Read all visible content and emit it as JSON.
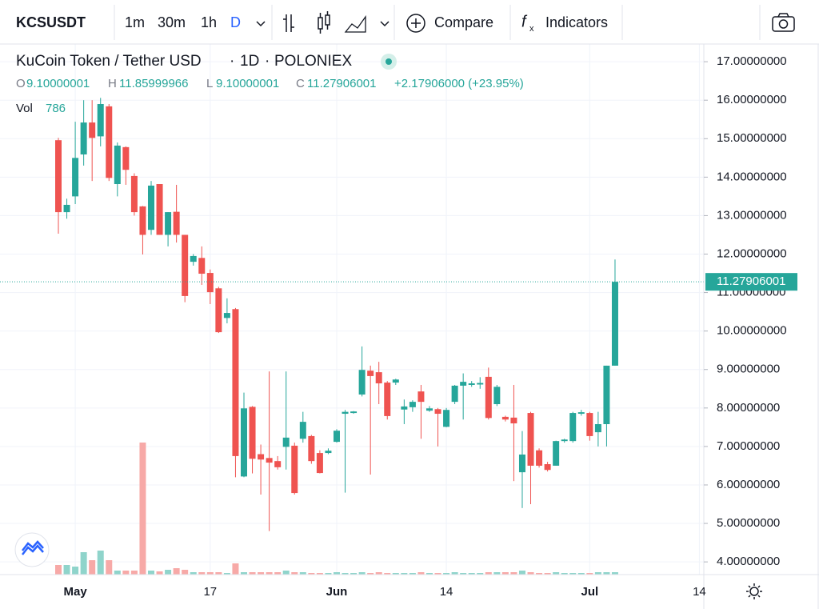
{
  "toolbar": {
    "symbol": "KCSUSDT",
    "intervals": [
      "1m",
      "30m",
      "1h",
      "D"
    ],
    "compare": "Compare",
    "indicators": "Indicators"
  },
  "chart_data": {
    "type": "candlestick",
    "title": "KuCoin Token / Tether USD",
    "separator": "·",
    "interval": "1D",
    "exchange": "POLONIEX",
    "ohlc_labels": [
      "O",
      "H",
      "L",
      "C"
    ],
    "change": "+2.17906000 (+23.95%)",
    "volume_label": "Vol",
    "categories": [
      null,
      null,
      "May",
      null,
      null,
      null,
      null,
      null,
      null,
      null,
      null,
      null,
      null,
      null,
      null,
      null,
      null,
      null,
      "17",
      null,
      null,
      null,
      null,
      null,
      null,
      null,
      null,
      null,
      null,
      null,
      null,
      null,
      null,
      "Jun",
      null,
      null,
      null,
      null,
      null,
      null,
      null,
      null,
      null,
      null,
      null,
      null,
      "14",
      null,
      null,
      null,
      null,
      null,
      null,
      null,
      null,
      null,
      null,
      null,
      null,
      null,
      null,
      null,
      null,
      "Jul",
      null,
      null,
      null,
      null,
      null,
      null,
      null,
      null,
      null,
      null,
      null,
      null,
      "14"
    ],
    "open": [
      14.96,
      13.09,
      13.5,
      14.59,
      15.42,
      15.06,
      15.84,
      13.82,
      14.78,
      14.03,
      13.24,
      12.63,
      13.82,
      12.5,
      13.1,
      12.5,
      11.8,
      11.9,
      11.51,
      11.11,
      10.34,
      10.57,
      6.22,
      8.03,
      6.8,
      6.7,
      6.62,
      6.99,
      7.02,
      7.2,
      7.27,
      6.83,
      6.83,
      7.12,
      7.85,
      7.87,
      8.35,
      8.97,
      8.93,
      8.66,
      8.66,
      7.96,
      8.02,
      8.43,
      7.93,
      7.97,
      7.51,
      8.16,
      8.58,
      8.6,
      8.61,
      8.81,
      8.1,
      7.77,
      7.75,
      6.33,
      7.87,
      6.9,
      6.54,
      6.5,
      7.14,
      7.14,
      7.85,
      7.87,
      7.37,
      7.58,
      9.10000001,
      null,
      null,
      null,
      null,
      null,
      null,
      null,
      null,
      null,
      null
    ],
    "high": [
      15.02,
      13.44,
      15.44,
      16.0,
      16.0,
      16.06,
      15.9,
      14.9,
      14.8,
      14.1,
      13.25,
      13.9,
      13.82,
      13.09,
      13.8,
      12.5,
      12.0,
      12.2,
      11.6,
      11.15,
      10.85,
      10.6,
      8.4,
      8.05,
      7.05,
      8.95,
      6.75,
      8.95,
      7.1,
      7.9,
      7.3,
      6.9,
      6.95,
      7.45,
      7.95,
      7.92,
      9.6,
      9.1,
      9.2,
      8.7,
      8.76,
      8.22,
      8.2,
      8.6,
      8.05,
      8.0,
      8.0,
      8.6,
      8.9,
      8.7,
      8.8,
      9.05,
      8.6,
      7.8,
      8.6,
      7.4,
      7.9,
      6.95,
      6.6,
      7.15,
      7.2,
      7.9,
      7.95,
      7.9,
      7.9,
      9.1,
      11.85999966,
      null,
      null,
      null,
      null,
      null,
      null,
      null,
      null,
      null,
      null
    ],
    "low": [
      12.53,
      12.92,
      13.3,
      14.3,
      13.9,
      14.8,
      13.9,
      13.5,
      13.8,
      13.0,
      11.99,
      12.5,
      12.5,
      12.2,
      12.3,
      10.75,
      11.7,
      11.2,
      10.7,
      9.95,
      10.2,
      6.2,
      6.2,
      6.3,
      5.75,
      4.8,
      6.4,
      6.4,
      5.75,
      7.1,
      6.55,
      6.3,
      6.8,
      7.1,
      5.8,
      7.85,
      8.3,
      6.27,
      8.1,
      7.7,
      8.6,
      7.58,
      7.9,
      7.2,
      7.9,
      7.0,
      7.5,
      8.1,
      7.7,
      8.55,
      8.5,
      7.7,
      8.05,
      7.65,
      6.1,
      5.4,
      5.5,
      6.45,
      6.35,
      6.5,
      7.1,
      7.1,
      7.8,
      7.15,
      7.0,
      7.0,
      9.10000001,
      null,
      null,
      null,
      null,
      null,
      null,
      null,
      null,
      null,
      null
    ],
    "close": [
      13.09,
      13.28,
      14.5,
      15.42,
      15.02,
      15.9,
      13.98,
      14.82,
      14.19,
      13.09,
      12.5,
      13.78,
      12.5,
      13.09,
      12.5,
      10.91,
      11.95,
      11.49,
      11.01,
      9.97,
      10.47,
      6.75,
      7.99,
      6.68,
      6.66,
      6.58,
      6.46,
      7.23,
      5.79,
      7.64,
      6.62,
      6.31,
      6.89,
      7.41,
      7.9,
      7.91,
      8.99,
      8.83,
      8.64,
      7.79,
      8.74,
      8.04,
      8.16,
      8.16,
      7.99,
      7.85,
      7.95,
      8.58,
      8.68,
      8.64,
      8.65,
      7.74,
      8.55,
      7.7,
      7.6,
      6.79,
      6.5,
      6.5,
      6.39,
      7.14,
      7.18,
      7.87,
      7.89,
      7.27,
      7.58,
      9.1,
      11.27906001,
      null,
      null,
      null,
      null,
      null,
      null,
      null,
      null,
      null,
      null
    ],
    "volume": [
      3144,
      3144,
      2620,
      7336,
      4716,
      7860,
      4716,
      1310,
      1310,
      1310,
      43230,
      1310,
      1048,
      1572,
      2096,
      1572,
      786,
      786,
      786,
      786,
      524,
      3668,
      786,
      786,
      786,
      786,
      786,
      1310,
      786,
      786,
      524,
      524,
      524,
      786,
      524,
      524,
      786,
      524,
      786,
      524,
      524,
      524,
      524,
      786,
      524,
      524,
      524,
      786,
      524,
      524,
      524,
      786,
      786,
      786,
      786,
      1310,
      786,
      524,
      524,
      786,
      524,
      524,
      524,
      524,
      786,
      786,
      786,
      null,
      null,
      null,
      null,
      null,
      null,
      null,
      null,
      null,
      null
    ],
    "up_color": "#26a69a",
    "down_color": "#ef5350",
    "up_volume_color": "#8fd4cb",
    "down_volume_color": "#f7a9a7",
    "ylim": [
      3.67,
      17.46
    ],
    "yticks": [
      {
        "value": 4,
        "label": "4.00000000"
      },
      {
        "value": 5,
        "label": "5.00000000"
      },
      {
        "value": 6,
        "label": "6.00000000"
      },
      {
        "value": 7,
        "label": "7.00000000"
      },
      {
        "value": 8,
        "label": "8.00000000"
      },
      {
        "value": 9,
        "label": "9.00000000"
      },
      {
        "value": 10,
        "label": "10.00000000"
      },
      {
        "value": 11,
        "label": "11.00000000"
      },
      {
        "value": 12,
        "label": "12.00000000"
      },
      {
        "value": 13,
        "label": "13.00000000"
      },
      {
        "value": 14,
        "label": "14.00000000"
      },
      {
        "value": 15,
        "label": "15.00000000"
      },
      {
        "value": 16,
        "label": "16.00000000"
      },
      {
        "value": 17,
        "label": "17.00000000"
      }
    ],
    "grid": true
  }
}
